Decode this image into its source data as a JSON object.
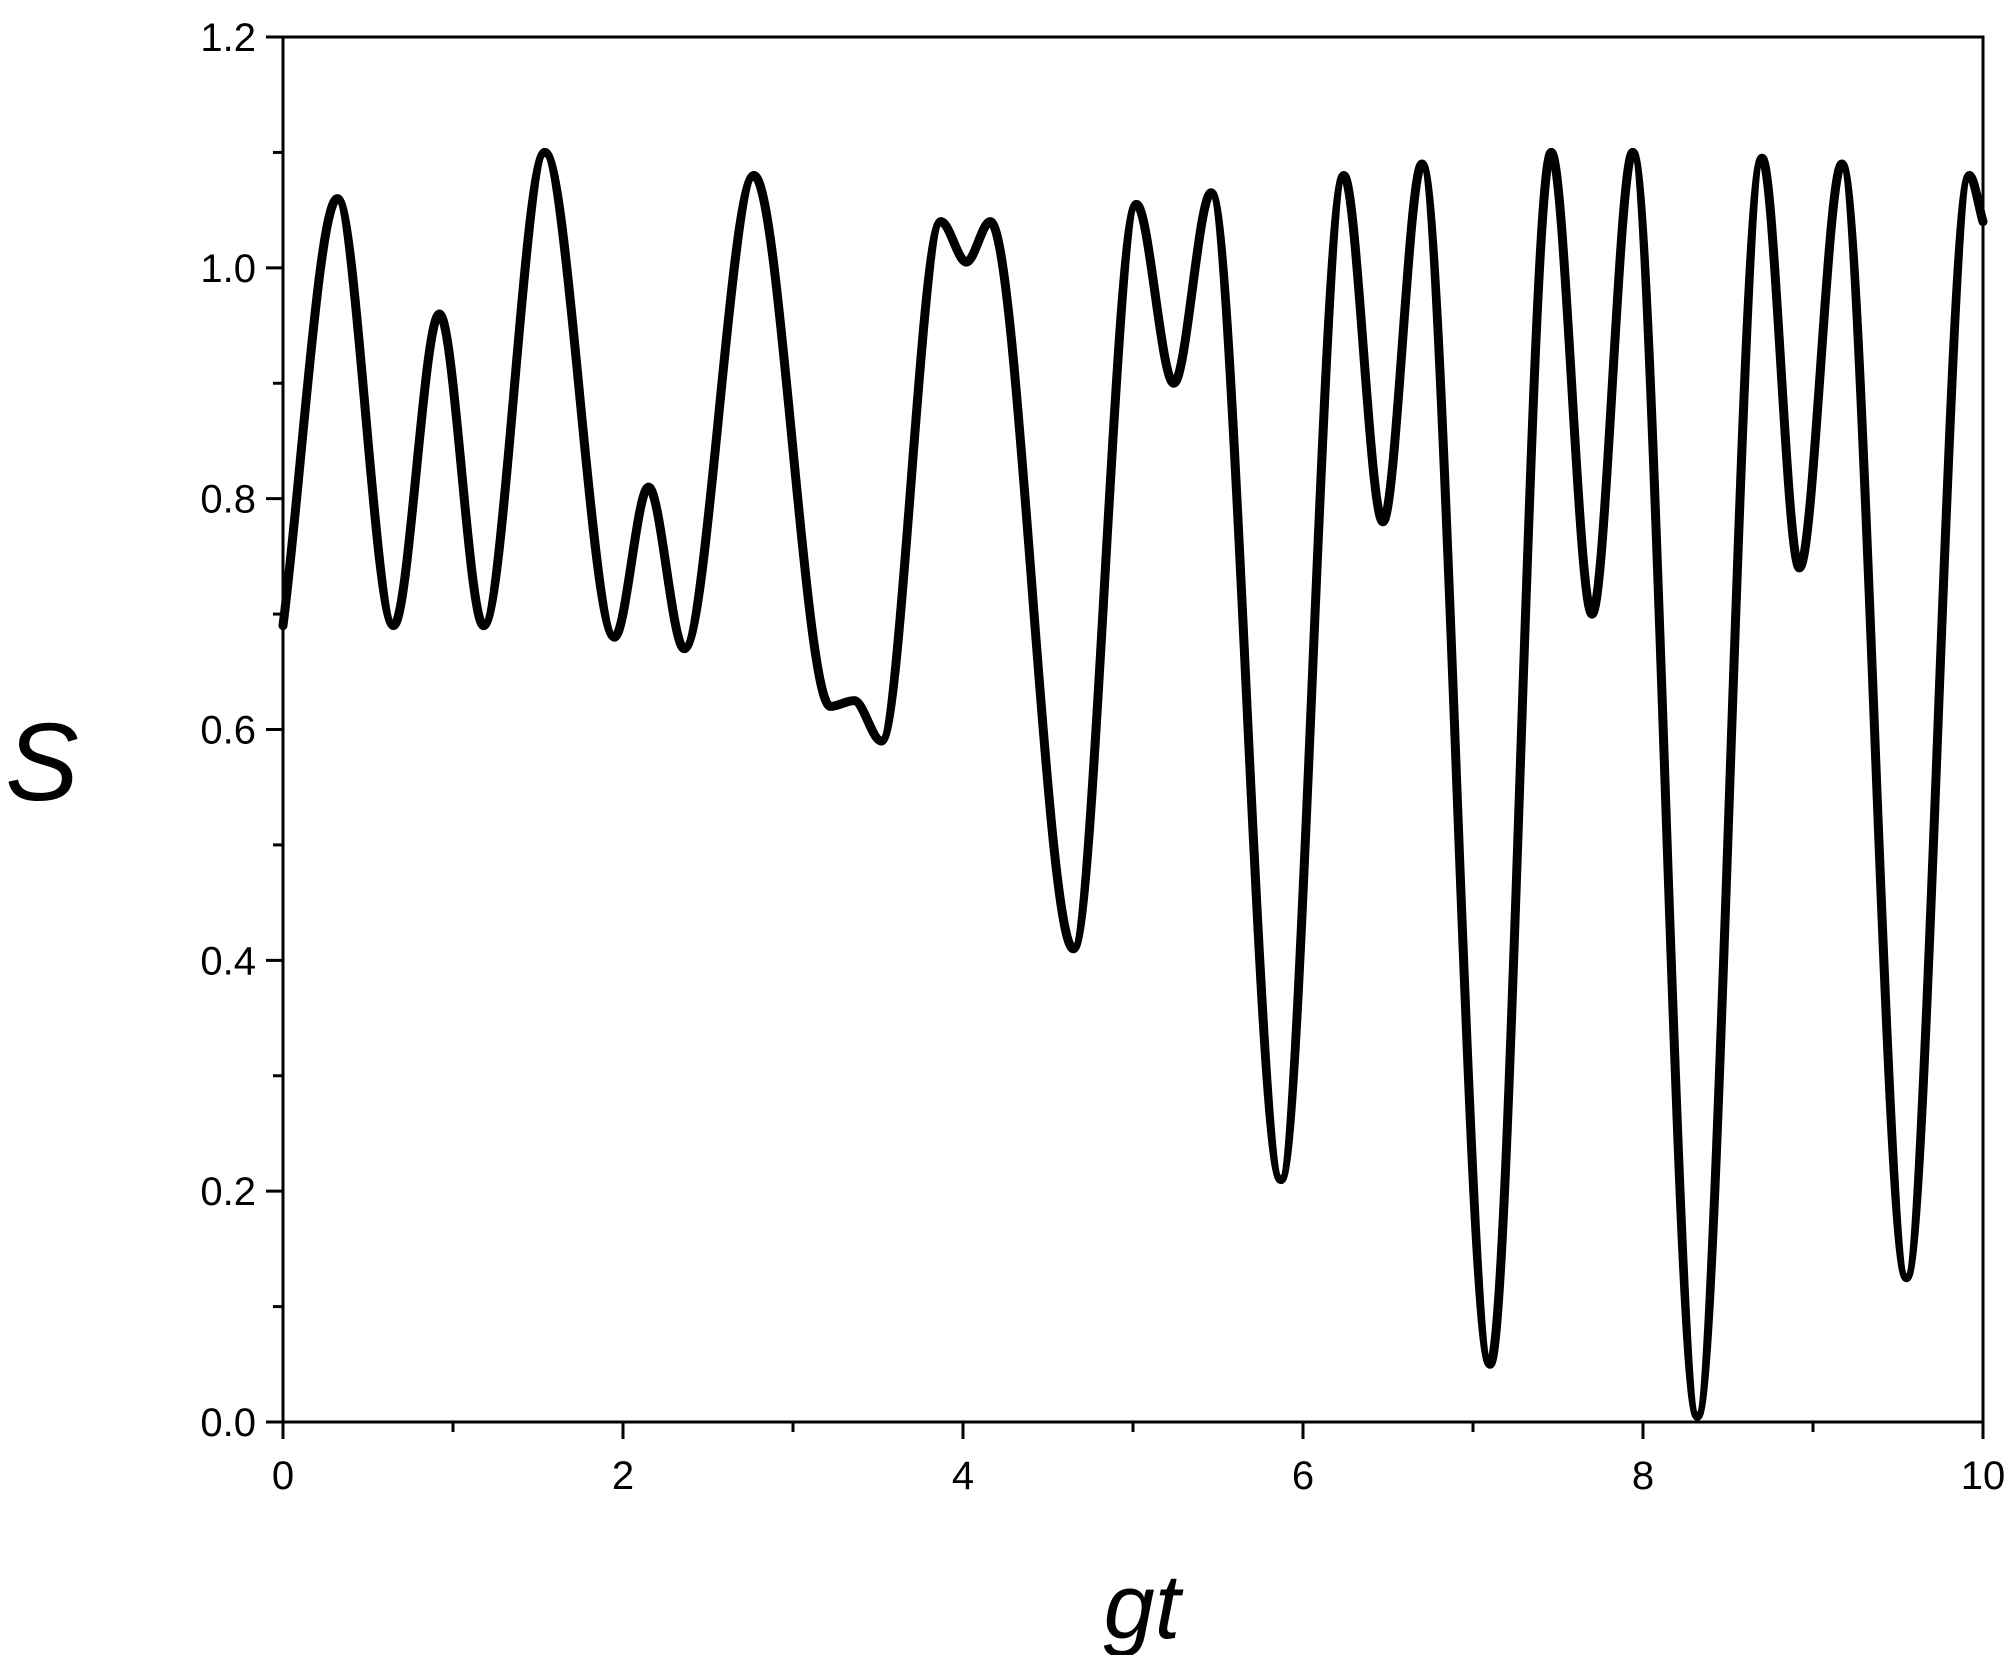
{
  "chart_data": {
    "type": "line",
    "title": "",
    "xlabel": "gt",
    "ylabel": "S",
    "xlim": [
      0,
      10
    ],
    "ylim": [
      0,
      1.2
    ],
    "grid": false,
    "legend": "none",
    "line_color": "#000000",
    "x_ticks": [
      {
        "value": 0,
        "label": "0"
      },
      {
        "value": 2,
        "label": "2"
      },
      {
        "value": 4,
        "label": "4"
      },
      {
        "value": 6,
        "label": "6"
      },
      {
        "value": 8,
        "label": "8"
      },
      {
        "value": 10,
        "label": "10"
      }
    ],
    "x_minor_ticks": [
      1,
      3,
      5,
      7,
      9
    ],
    "y_ticks": [
      {
        "value": 0.0,
        "label": "0.0"
      },
      {
        "value": 0.2,
        "label": "0.2"
      },
      {
        "value": 0.4,
        "label": "0.4"
      },
      {
        "value": 0.6,
        "label": "0.6"
      },
      {
        "value": 0.8,
        "label": "0.8"
      },
      {
        "value": 1.0,
        "label": "1.0"
      },
      {
        "value": 1.2,
        "label": "1.2"
      }
    ],
    "y_minor_ticks": [
      0.1,
      0.3,
      0.5,
      0.7,
      0.9,
      1.1
    ],
    "series": [
      {
        "points": [
          [
            0.0,
            0.69
          ],
          [
            0.32,
            1.06
          ],
          [
            0.65,
            0.69
          ],
          [
            0.92,
            0.96
          ],
          [
            1.18,
            0.69
          ],
          [
            1.54,
            1.1
          ],
          [
            1.95,
            0.68
          ],
          [
            2.15,
            0.81
          ],
          [
            2.36,
            0.67
          ],
          [
            2.77,
            1.08
          ],
          [
            3.22,
            0.62
          ],
          [
            3.36,
            0.625
          ],
          [
            3.52,
            0.59
          ],
          [
            3.87,
            1.04
          ],
          [
            4.02,
            1.005
          ],
          [
            4.16,
            1.04
          ],
          [
            4.65,
            0.41
          ],
          [
            5.02,
            1.055
          ],
          [
            5.24,
            0.9
          ],
          [
            5.46,
            1.065
          ],
          [
            5.87,
            0.21
          ],
          [
            6.24,
            1.08
          ],
          [
            6.47,
            0.78
          ],
          [
            6.7,
            1.09
          ],
          [
            7.1,
            0.05
          ],
          [
            7.46,
            1.1
          ],
          [
            7.7,
            0.7
          ],
          [
            7.94,
            1.1
          ],
          [
            8.32,
            0.005
          ],
          [
            8.7,
            1.095
          ],
          [
            8.92,
            0.74
          ],
          [
            9.17,
            1.09
          ],
          [
            9.55,
            0.125
          ],
          [
            9.92,
            1.08
          ],
          [
            10.0,
            1.04
          ]
        ]
      }
    ]
  }
}
